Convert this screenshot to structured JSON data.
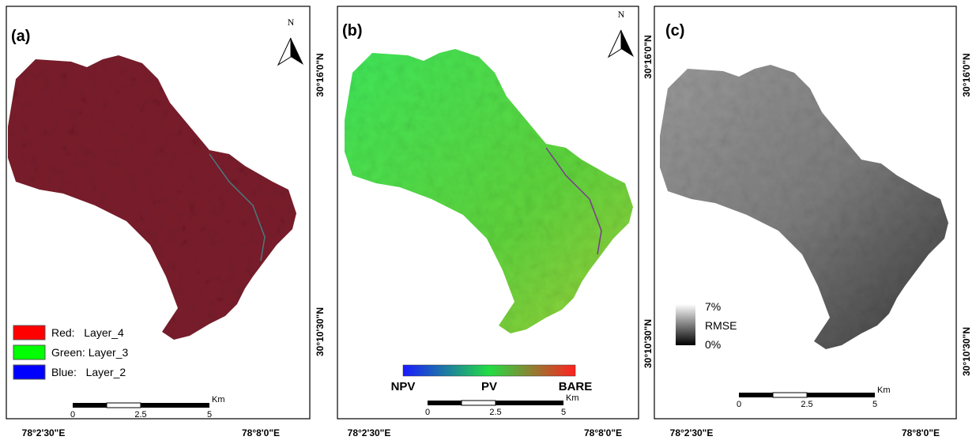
{
  "panels": [
    {
      "label": "(a)",
      "north": "N",
      "lat_labels": [
        "30°16'0\"N",
        "30°10'30\"N"
      ],
      "lon_labels": [
        "78°2'30\"E",
        "78°8'0\"E"
      ],
      "legend": [
        "Red:   Layer_4",
        "Green: Layer_3",
        "Blue:   Layer_2"
      ],
      "scale": {
        "unit": "Km",
        "ticks": [
          "0",
          "2.5",
          "5"
        ]
      }
    },
    {
      "label": "(b)",
      "north": "N",
      "lat_labels": [
        "30°16'0\"N",
        "30°10'30\"N"
      ],
      "lon_labels": [
        "78°2'30\"E",
        "78°8'0\"E"
      ],
      "colorbar": [
        "NPV",
        "PV",
        "BARE"
      ],
      "scale": {
        "unit": "Km",
        "ticks": [
          "0",
          "2.5",
          "5"
        ]
      }
    },
    {
      "label": "(c)",
      "lat_labels": [
        "30°16'0\"N",
        "30°10'30\"N"
      ],
      "lon_labels": [
        "78°2'30\"E",
        "78°8'0\"E"
      ],
      "colorbar": [
        "7%",
        "RMSE",
        "0%"
      ],
      "scale": {
        "unit": "Km",
        "ticks": [
          "0",
          "2.5",
          "5"
        ]
      }
    }
  ]
}
